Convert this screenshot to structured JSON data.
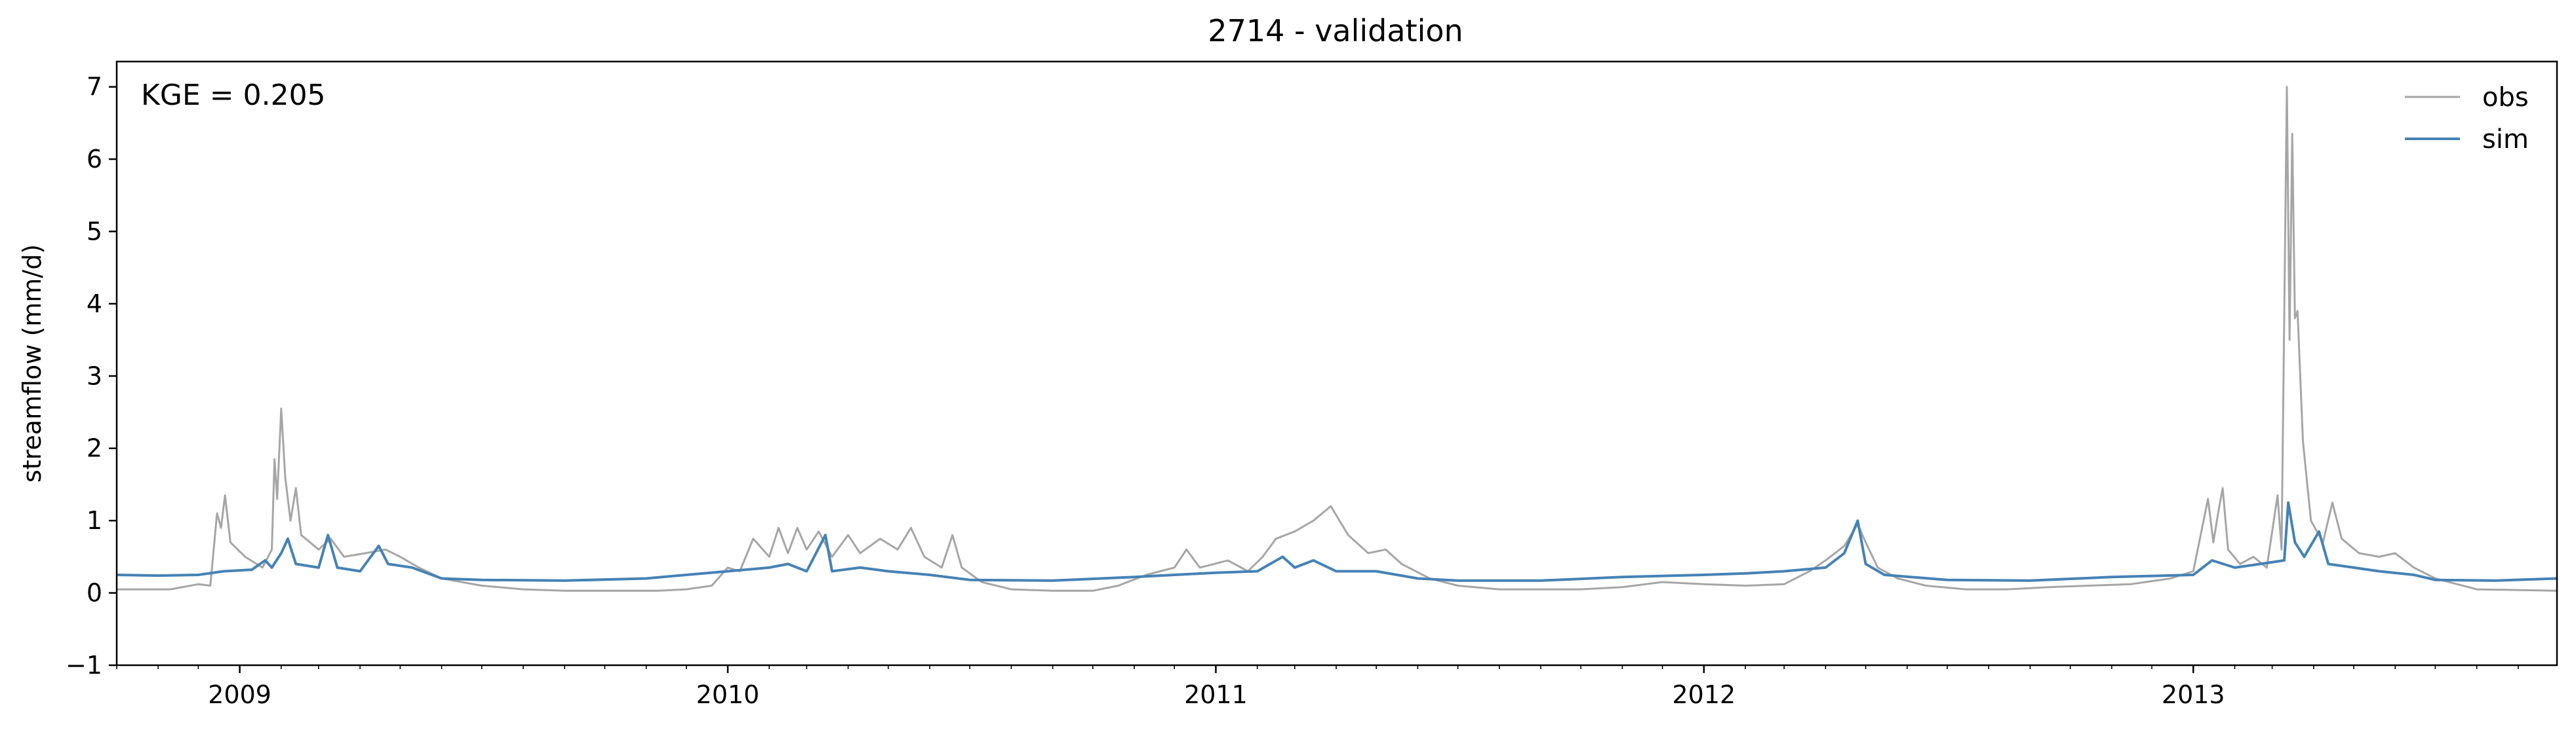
{
  "chart_data": {
    "type": "line",
    "title": "2714 - validation",
    "xlabel": "",
    "ylabel": "streamflow (mm/d)",
    "annotation": "KGE = 0.205",
    "legend_placement": "top-right",
    "grid": false,
    "xlim": [
      "2008-10-01",
      "2013-09-30"
    ],
    "ylim": [
      -1,
      7.35
    ],
    "yticks": [
      -1,
      0,
      1,
      2,
      3,
      4,
      5,
      6,
      7
    ],
    "xtick_labels": [
      "2009",
      "2010",
      "2011",
      "2012",
      "2013"
    ],
    "series": [
      {
        "name": "obs",
        "color": "#a6a6a6",
        "points": [
          [
            "2008-10-01",
            0.05
          ],
          [
            "2008-11-10",
            0.05
          ],
          [
            "2008-12-01",
            0.12
          ],
          [
            "2008-12-10",
            0.1
          ],
          [
            "2008-12-15",
            1.1
          ],
          [
            "2008-12-18",
            0.9
          ],
          [
            "2008-12-21",
            1.35
          ],
          [
            "2008-12-25",
            0.7
          ],
          [
            "2009-01-05",
            0.5
          ],
          [
            "2009-01-18",
            0.35
          ],
          [
            "2009-01-25",
            0.6
          ],
          [
            "2009-01-27",
            1.85
          ],
          [
            "2009-01-29",
            1.3
          ],
          [
            "2009-02-01",
            2.55
          ],
          [
            "2009-02-04",
            1.6
          ],
          [
            "2009-02-08",
            1.0
          ],
          [
            "2009-02-12",
            1.45
          ],
          [
            "2009-02-16",
            0.8
          ],
          [
            "2009-03-01",
            0.6
          ],
          [
            "2009-03-10",
            0.75
          ],
          [
            "2009-03-20",
            0.5
          ],
          [
            "2009-04-05",
            0.55
          ],
          [
            "2009-04-20",
            0.6
          ],
          [
            "2009-05-01",
            0.5
          ],
          [
            "2009-05-15",
            0.35
          ],
          [
            "2009-06-01",
            0.2
          ],
          [
            "2009-07-01",
            0.1
          ],
          [
            "2009-08-01",
            0.05
          ],
          [
            "2009-09-01",
            0.03
          ],
          [
            "2009-10-01",
            0.03
          ],
          [
            "2009-11-10",
            0.03
          ],
          [
            "2009-12-01",
            0.05
          ],
          [
            "2009-12-20",
            0.1
          ],
          [
            "2010-01-01",
            0.35
          ],
          [
            "2010-01-10",
            0.3
          ],
          [
            "2010-01-20",
            0.75
          ],
          [
            "2010-02-01",
            0.5
          ],
          [
            "2010-02-08",
            0.9
          ],
          [
            "2010-02-15",
            0.55
          ],
          [
            "2010-02-22",
            0.9
          ],
          [
            "2010-03-01",
            0.6
          ],
          [
            "2010-03-10",
            0.85
          ],
          [
            "2010-03-20",
            0.5
          ],
          [
            "2010-04-01",
            0.8
          ],
          [
            "2010-04-10",
            0.55
          ],
          [
            "2010-04-25",
            0.75
          ],
          [
            "2010-05-08",
            0.6
          ],
          [
            "2010-05-18",
            0.9
          ],
          [
            "2010-05-28",
            0.5
          ],
          [
            "2010-06-10",
            0.35
          ],
          [
            "2010-06-18",
            0.8
          ],
          [
            "2010-06-25",
            0.35
          ],
          [
            "2010-07-10",
            0.15
          ],
          [
            "2010-08-01",
            0.05
          ],
          [
            "2010-09-01",
            0.03
          ],
          [
            "2010-10-01",
            0.03
          ],
          [
            "2010-10-20",
            0.1
          ],
          [
            "2010-11-10",
            0.25
          ],
          [
            "2010-12-01",
            0.35
          ],
          [
            "2010-12-10",
            0.6
          ],
          [
            "2010-12-20",
            0.35
          ],
          [
            "2011-01-10",
            0.45
          ],
          [
            "2011-01-25",
            0.3
          ],
          [
            "2011-02-05",
            0.5
          ],
          [
            "2011-02-15",
            0.75
          ],
          [
            "2011-03-01",
            0.85
          ],
          [
            "2011-03-15",
            1.0
          ],
          [
            "2011-03-28",
            1.2
          ],
          [
            "2011-04-10",
            0.8
          ],
          [
            "2011-04-25",
            0.55
          ],
          [
            "2011-05-08",
            0.6
          ],
          [
            "2011-05-20",
            0.4
          ],
          [
            "2011-06-10",
            0.2
          ],
          [
            "2011-07-01",
            0.1
          ],
          [
            "2011-08-01",
            0.05
          ],
          [
            "2011-09-01",
            0.05
          ],
          [
            "2011-10-01",
            0.05
          ],
          [
            "2011-11-01",
            0.08
          ],
          [
            "2011-12-01",
            0.15
          ],
          [
            "2012-01-01",
            0.12
          ],
          [
            "2012-02-01",
            0.1
          ],
          [
            "2012-03-01",
            0.12
          ],
          [
            "2012-03-20",
            0.3
          ],
          [
            "2012-04-01",
            0.45
          ],
          [
            "2012-04-15",
            0.65
          ],
          [
            "2012-04-25",
            0.95
          ],
          [
            "2012-05-01",
            0.7
          ],
          [
            "2012-05-10",
            0.35
          ],
          [
            "2012-05-25",
            0.2
          ],
          [
            "2012-06-15",
            0.1
          ],
          [
            "2012-07-15",
            0.05
          ],
          [
            "2012-08-15",
            0.05
          ],
          [
            "2012-09-15",
            0.08
          ],
          [
            "2012-10-15",
            0.1
          ],
          [
            "2012-11-15",
            0.12
          ],
          [
            "2012-12-15",
            0.2
          ],
          [
            "2013-01-01",
            0.3
          ],
          [
            "2013-01-12",
            1.3
          ],
          [
            "2013-01-16",
            0.7
          ],
          [
            "2013-01-20",
            1.15
          ],
          [
            "2013-01-23",
            1.45
          ],
          [
            "2013-01-27",
            0.6
          ],
          [
            "2013-02-05",
            0.4
          ],
          [
            "2013-02-15",
            0.5
          ],
          [
            "2013-02-25",
            0.35
          ],
          [
            "2013-03-05",
            1.35
          ],
          [
            "2013-03-08",
            0.6
          ],
          [
            "2013-03-12",
            7.0
          ],
          [
            "2013-03-14",
            3.5
          ],
          [
            "2013-03-16",
            6.35
          ],
          [
            "2013-03-18",
            3.8
          ],
          [
            "2013-03-20",
            3.9
          ],
          [
            "2013-03-24",
            2.1
          ],
          [
            "2013-03-30",
            1.0
          ],
          [
            "2013-04-08",
            0.7
          ],
          [
            "2013-04-15",
            1.25
          ],
          [
            "2013-04-22",
            0.75
          ],
          [
            "2013-05-05",
            0.55
          ],
          [
            "2013-05-20",
            0.5
          ],
          [
            "2013-06-01",
            0.55
          ],
          [
            "2013-06-15",
            0.35
          ],
          [
            "2013-07-01",
            0.2
          ],
          [
            "2013-08-01",
            0.05
          ],
          [
            "2013-09-30",
            0.03
          ]
        ]
      },
      {
        "name": "sim",
        "color": "#4682b4",
        "points": [
          [
            "2008-10-01",
            0.25
          ],
          [
            "2008-11-01",
            0.24
          ],
          [
            "2008-12-01",
            0.25
          ],
          [
            "2008-12-20",
            0.3
          ],
          [
            "2009-01-10",
            0.32
          ],
          [
            "2009-01-20",
            0.45
          ],
          [
            "2009-01-25",
            0.35
          ],
          [
            "2009-02-01",
            0.55
          ],
          [
            "2009-02-06",
            0.75
          ],
          [
            "2009-02-12",
            0.4
          ],
          [
            "2009-03-01",
            0.35
          ],
          [
            "2009-03-08",
            0.8
          ],
          [
            "2009-03-15",
            0.35
          ],
          [
            "2009-04-01",
            0.3
          ],
          [
            "2009-04-15",
            0.65
          ],
          [
            "2009-04-22",
            0.4
          ],
          [
            "2009-05-10",
            0.35
          ],
          [
            "2009-06-01",
            0.2
          ],
          [
            "2009-07-01",
            0.18
          ],
          [
            "2009-09-01",
            0.17
          ],
          [
            "2009-11-01",
            0.2
          ],
          [
            "2009-12-01",
            0.25
          ],
          [
            "2010-01-01",
            0.3
          ],
          [
            "2010-02-01",
            0.35
          ],
          [
            "2010-02-15",
            0.4
          ],
          [
            "2010-03-01",
            0.3
          ],
          [
            "2010-03-15",
            0.8
          ],
          [
            "2010-03-20",
            0.3
          ],
          [
            "2010-04-10",
            0.35
          ],
          [
            "2010-05-01",
            0.3
          ],
          [
            "2010-06-01",
            0.25
          ],
          [
            "2010-07-01",
            0.18
          ],
          [
            "2010-09-01",
            0.17
          ],
          [
            "2010-11-01",
            0.22
          ],
          [
            "2010-12-01",
            0.25
          ],
          [
            "2011-01-01",
            0.28
          ],
          [
            "2011-02-01",
            0.3
          ],
          [
            "2011-02-20",
            0.5
          ],
          [
            "2011-03-01",
            0.35
          ],
          [
            "2011-03-15",
            0.45
          ],
          [
            "2011-04-01",
            0.3
          ],
          [
            "2011-05-01",
            0.3
          ],
          [
            "2011-06-01",
            0.2
          ],
          [
            "2011-07-01",
            0.17
          ],
          [
            "2011-09-01",
            0.17
          ],
          [
            "2011-11-01",
            0.22
          ],
          [
            "2012-01-01",
            0.25
          ],
          [
            "2012-02-01",
            0.27
          ],
          [
            "2012-03-01",
            0.3
          ],
          [
            "2012-04-01",
            0.35
          ],
          [
            "2012-04-15",
            0.55
          ],
          [
            "2012-04-25",
            1.0
          ],
          [
            "2012-05-01",
            0.4
          ],
          [
            "2012-05-15",
            0.25
          ],
          [
            "2012-07-01",
            0.18
          ],
          [
            "2012-09-01",
            0.17
          ],
          [
            "2012-11-01",
            0.22
          ],
          [
            "2013-01-01",
            0.25
          ],
          [
            "2013-01-15",
            0.45
          ],
          [
            "2013-02-01",
            0.35
          ],
          [
            "2013-02-20",
            0.4
          ],
          [
            "2013-03-10",
            0.45
          ],
          [
            "2013-03-13",
            1.25
          ],
          [
            "2013-03-18",
            0.7
          ],
          [
            "2013-03-25",
            0.5
          ],
          [
            "2013-04-05",
            0.85
          ],
          [
            "2013-04-12",
            0.4
          ],
          [
            "2013-05-01",
            0.35
          ],
          [
            "2013-05-20",
            0.3
          ],
          [
            "2013-06-15",
            0.25
          ],
          [
            "2013-07-01",
            0.18
          ],
          [
            "2013-08-15",
            0.17
          ],
          [
            "2013-09-30",
            0.2
          ]
        ]
      }
    ]
  }
}
